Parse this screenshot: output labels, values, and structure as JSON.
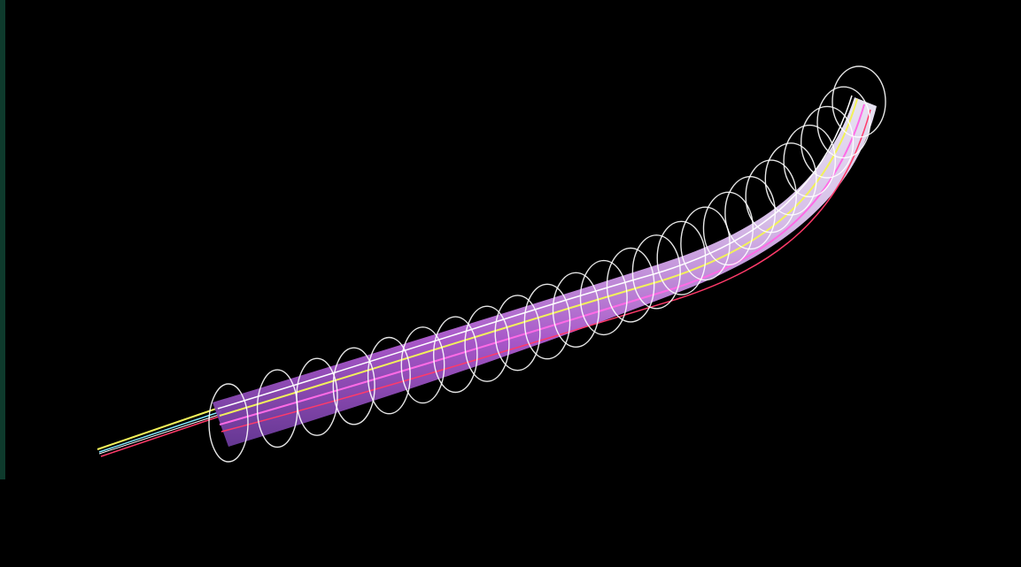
{
  "scene": {
    "background_color": "#000000",
    "left_strip_color": "#0e3a2c",
    "tube_colors": {
      "shell": "#d8d2f0",
      "core": "#8a4ab8",
      "core_highlight": "#ff6be6",
      "wire_white": "#ffffff",
      "wire_yellow": "#f2f25a",
      "wire_red": "#ff3a6a",
      "wire_cyan": "#80e8ff"
    },
    "ring_count": 24,
    "ring_color": "#ffffff",
    "icons": [
      "tube-visualization-icon"
    ]
  }
}
